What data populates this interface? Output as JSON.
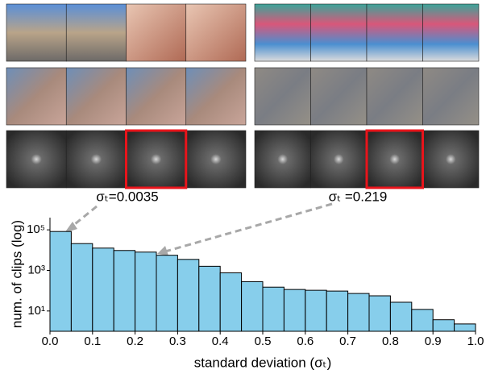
{
  "chart_data": {
    "type": "histogram",
    "annotations": [
      "σₜ=0.0035",
      "σₜ =0.219"
    ],
    "x_label": "standard deviation (σₜ)",
    "y_label": "num. of clips (log)",
    "bins": [
      0,
      0.05,
      0.1,
      0.15,
      0.2,
      0.25,
      0.3,
      0.35,
      0.4,
      0.45,
      0.5,
      0.55,
      0.6,
      0.65,
      0.7,
      0.75,
      0.8,
      0.85,
      0.9,
      0.95,
      1.0
    ],
    "values": [
      83000,
      21000,
      12600,
      9600,
      8000,
      5600,
      3500,
      1600,
      760,
      280,
      150,
      115,
      105,
      96,
      73,
      56,
      27,
      12,
      3.7,
      2.3
    ],
    "color": "#87ceeb",
    "log_y": true,
    "xlim": [
      0,
      1.0
    ],
    "ylim": [
      1,
      400000
    ],
    "xticks": [
      {
        "value": 0,
        "label": "0.0"
      },
      0.1,
      0.2,
      0.3,
      0.4,
      0.5,
      0.6,
      0.7,
      0.8,
      0.9,
      {
        "value": 1.0,
        "label": "1.0"
      }
    ],
    "yticks": [
      {
        "value": 10,
        "label": "10¹"
      },
      {
        "value": 1000,
        "label": "10³"
      },
      {
        "value": 100000,
        "label": "10⁵"
      }
    ]
  }
}
